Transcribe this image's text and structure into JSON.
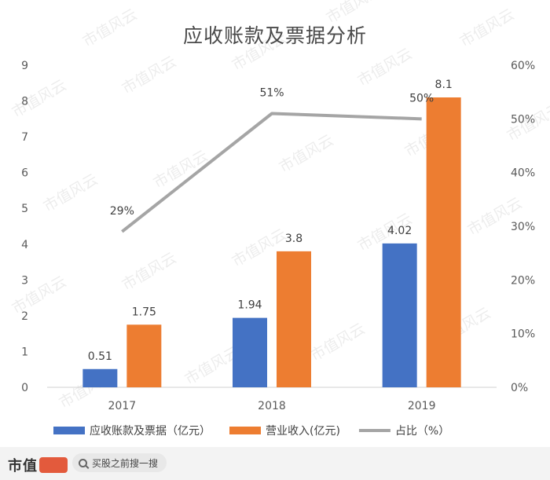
{
  "chart_data": {
    "type": "bar",
    "title": "应收账款及票据分析",
    "categories": [
      "2017",
      "2018",
      "2019"
    ],
    "series": [
      {
        "name": "应收账款及票据（亿元）",
        "type": "bar",
        "axis": "left",
        "color": "#4472C4",
        "values": [
          0.51,
          1.94,
          4.02
        ],
        "labels": [
          "0.51",
          "1.94",
          "4.02"
        ]
      },
      {
        "name": "营业收入(亿元)",
        "type": "bar",
        "axis": "left",
        "color": "#ED7D31",
        "values": [
          1.75,
          3.8,
          8.1
        ],
        "labels": [
          "1.75",
          "3.8",
          "8.1"
        ]
      },
      {
        "name": "占比（%）",
        "type": "line",
        "axis": "right",
        "color": "#A5A5A5",
        "values": [
          29,
          51,
          50
        ],
        "labels": [
          "29%",
          "51%",
          "50%"
        ]
      }
    ],
    "ylim": [
      0,
      9
    ],
    "y_ticks": [
      "0",
      "1",
      "2",
      "3",
      "4",
      "5",
      "6",
      "7",
      "8",
      "9"
    ],
    "y2lim": [
      0,
      60
    ],
    "y2_ticks": [
      "0%",
      "10%",
      "20%",
      "30%",
      "40%",
      "50%",
      "60%"
    ],
    "grid": false,
    "legend_position": "bottom"
  },
  "watermark": "市值风云",
  "footer": {
    "brand": "市值",
    "search_placeholder": "买股之前搜一搜"
  }
}
